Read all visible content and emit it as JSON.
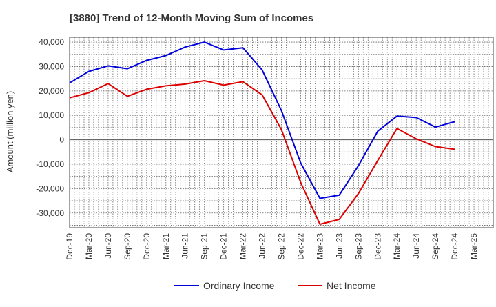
{
  "chart_data": {
    "type": "line",
    "title": "[3880]  Trend of 12-Month Moving Sum of Incomes",
    "xlabel": "",
    "ylabel": "Amount (million yen)",
    "ylim": [
      -36000,
      42000
    ],
    "grid": true,
    "legend_position": "bottom-center",
    "categories": [
      "Dec-19",
      "Mar-20",
      "Jun-20",
      "Sep-20",
      "Dec-20",
      "Mar-21",
      "Jun-21",
      "Sep-21",
      "Dec-21",
      "Mar-22",
      "Jun-22",
      "Sep-22",
      "Dec-22",
      "Mar-23",
      "Jun-23",
      "Sep-23",
      "Dec-23",
      "Mar-24",
      "Jun-24",
      "Sep-24",
      "Dec-24",
      "Mar-25"
    ],
    "y_ticks": [
      40000,
      30000,
      20000,
      10000,
      0,
      -10000,
      -20000,
      -30000
    ],
    "y_tick_labels": [
      "40,000",
      "30,000",
      "20,000",
      "10,000",
      "0",
      "-10,000",
      "-20,000",
      "-30,000"
    ],
    "series": [
      {
        "name": "Ordinary Income",
        "color": "#0000dd",
        "values": [
          23300,
          28000,
          30300,
          29100,
          32500,
          34500,
          38000,
          40000,
          36800,
          37700,
          28600,
          12000,
          -9500,
          -24000,
          -22700,
          -10600,
          3500,
          9700,
          9100,
          5200,
          7400,
          null
        ]
      },
      {
        "name": "Net Income",
        "color": "#dd0000",
        "values": [
          17200,
          19300,
          23000,
          17800,
          20700,
          22100,
          22800,
          24200,
          22400,
          23800,
          18400,
          4200,
          -17500,
          -34600,
          -32600,
          -22000,
          -8500,
          4600,
          400,
          -2800,
          -3900,
          null
        ]
      }
    ]
  }
}
